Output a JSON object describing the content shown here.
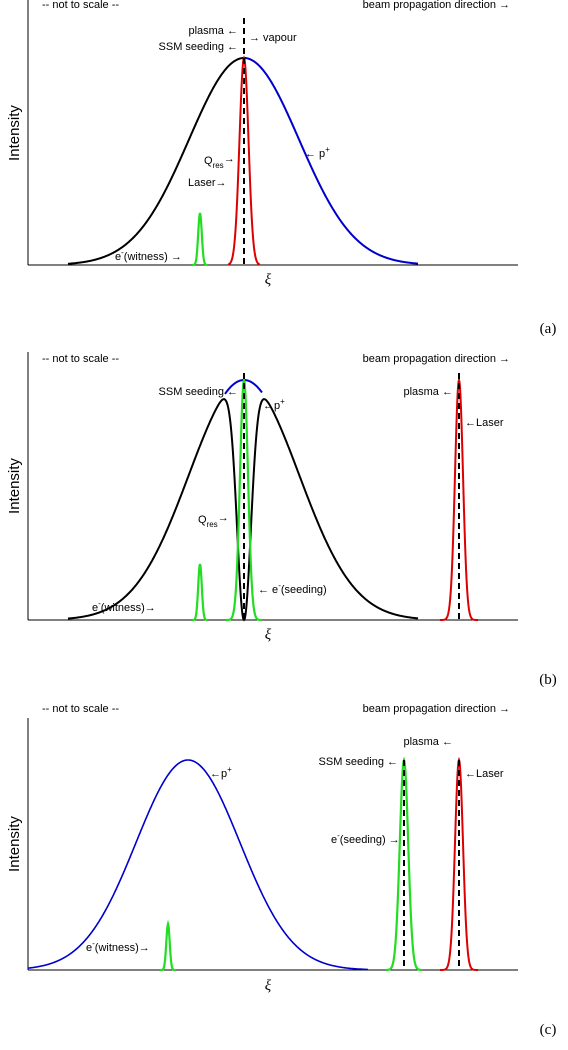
{
  "panels": [
    {
      "id": "a",
      "header_left": "-- not to scale --",
      "header_right": "beam propagation direction →",
      "ylabel": "Intensity",
      "xlabel": "ξ",
      "panel_label": "(a)",
      "labels": {
        "plasma": "plasma ←",
        "ssm_seeding": "SSM seeding ←",
        "vapour": "→ vapour",
        "q_res": "Q",
        "q_res_sub": "res",
        "q_res_arrow": "→",
        "laser": "Laser→",
        "proton": "← p",
        "proton_sup": "+",
        "e_witness": "e",
        "e_witness_sup": "-",
        "e_witness_rest": "(witness) →"
      }
    },
    {
      "id": "b",
      "header_left": "-- not to scale --",
      "header_right": "beam propagation direction →",
      "ylabel": "Intensity",
      "xlabel": "ξ",
      "panel_label": "(b)",
      "labels": {
        "ssm_seeding": "SSM seeding ←",
        "proton": "←p",
        "proton_sup": "+",
        "plasma": "plasma ←",
        "laser": "←Laser",
        "q_res": "Q",
        "q_res_sub": "res",
        "q_res_arrow": "→",
        "e_witness": "e",
        "e_witness_sup": "-",
        "e_witness_rest": "(witness)→",
        "e_seeding_arrow": "← e",
        "e_seeding_sup": "-",
        "e_seeding_rest": "(seeding)"
      }
    },
    {
      "id": "c",
      "header_left": "-- not to scale --",
      "header_right": "beam propagation direction →",
      "ylabel": "Intensity",
      "xlabel": "ξ",
      "panel_label": "(c)",
      "labels": {
        "proton": "←p",
        "proton_sup": "+",
        "plasma": "plasma ←",
        "ssm_seeding": "SSM seeding ←",
        "laser": "←Laser",
        "e_seeding": "e",
        "e_seeding_sup": "-",
        "e_seeding_rest": "(seeding) →",
        "e_witness": "e",
        "e_witness_sup": "-",
        "e_witness_rest": "(witness)→"
      }
    }
  ],
  "colors": {
    "proton_blue": "#0000cc",
    "laser_red": "#dd0000",
    "electron_green": "#22dd22",
    "plasma_black": "#000000"
  }
}
